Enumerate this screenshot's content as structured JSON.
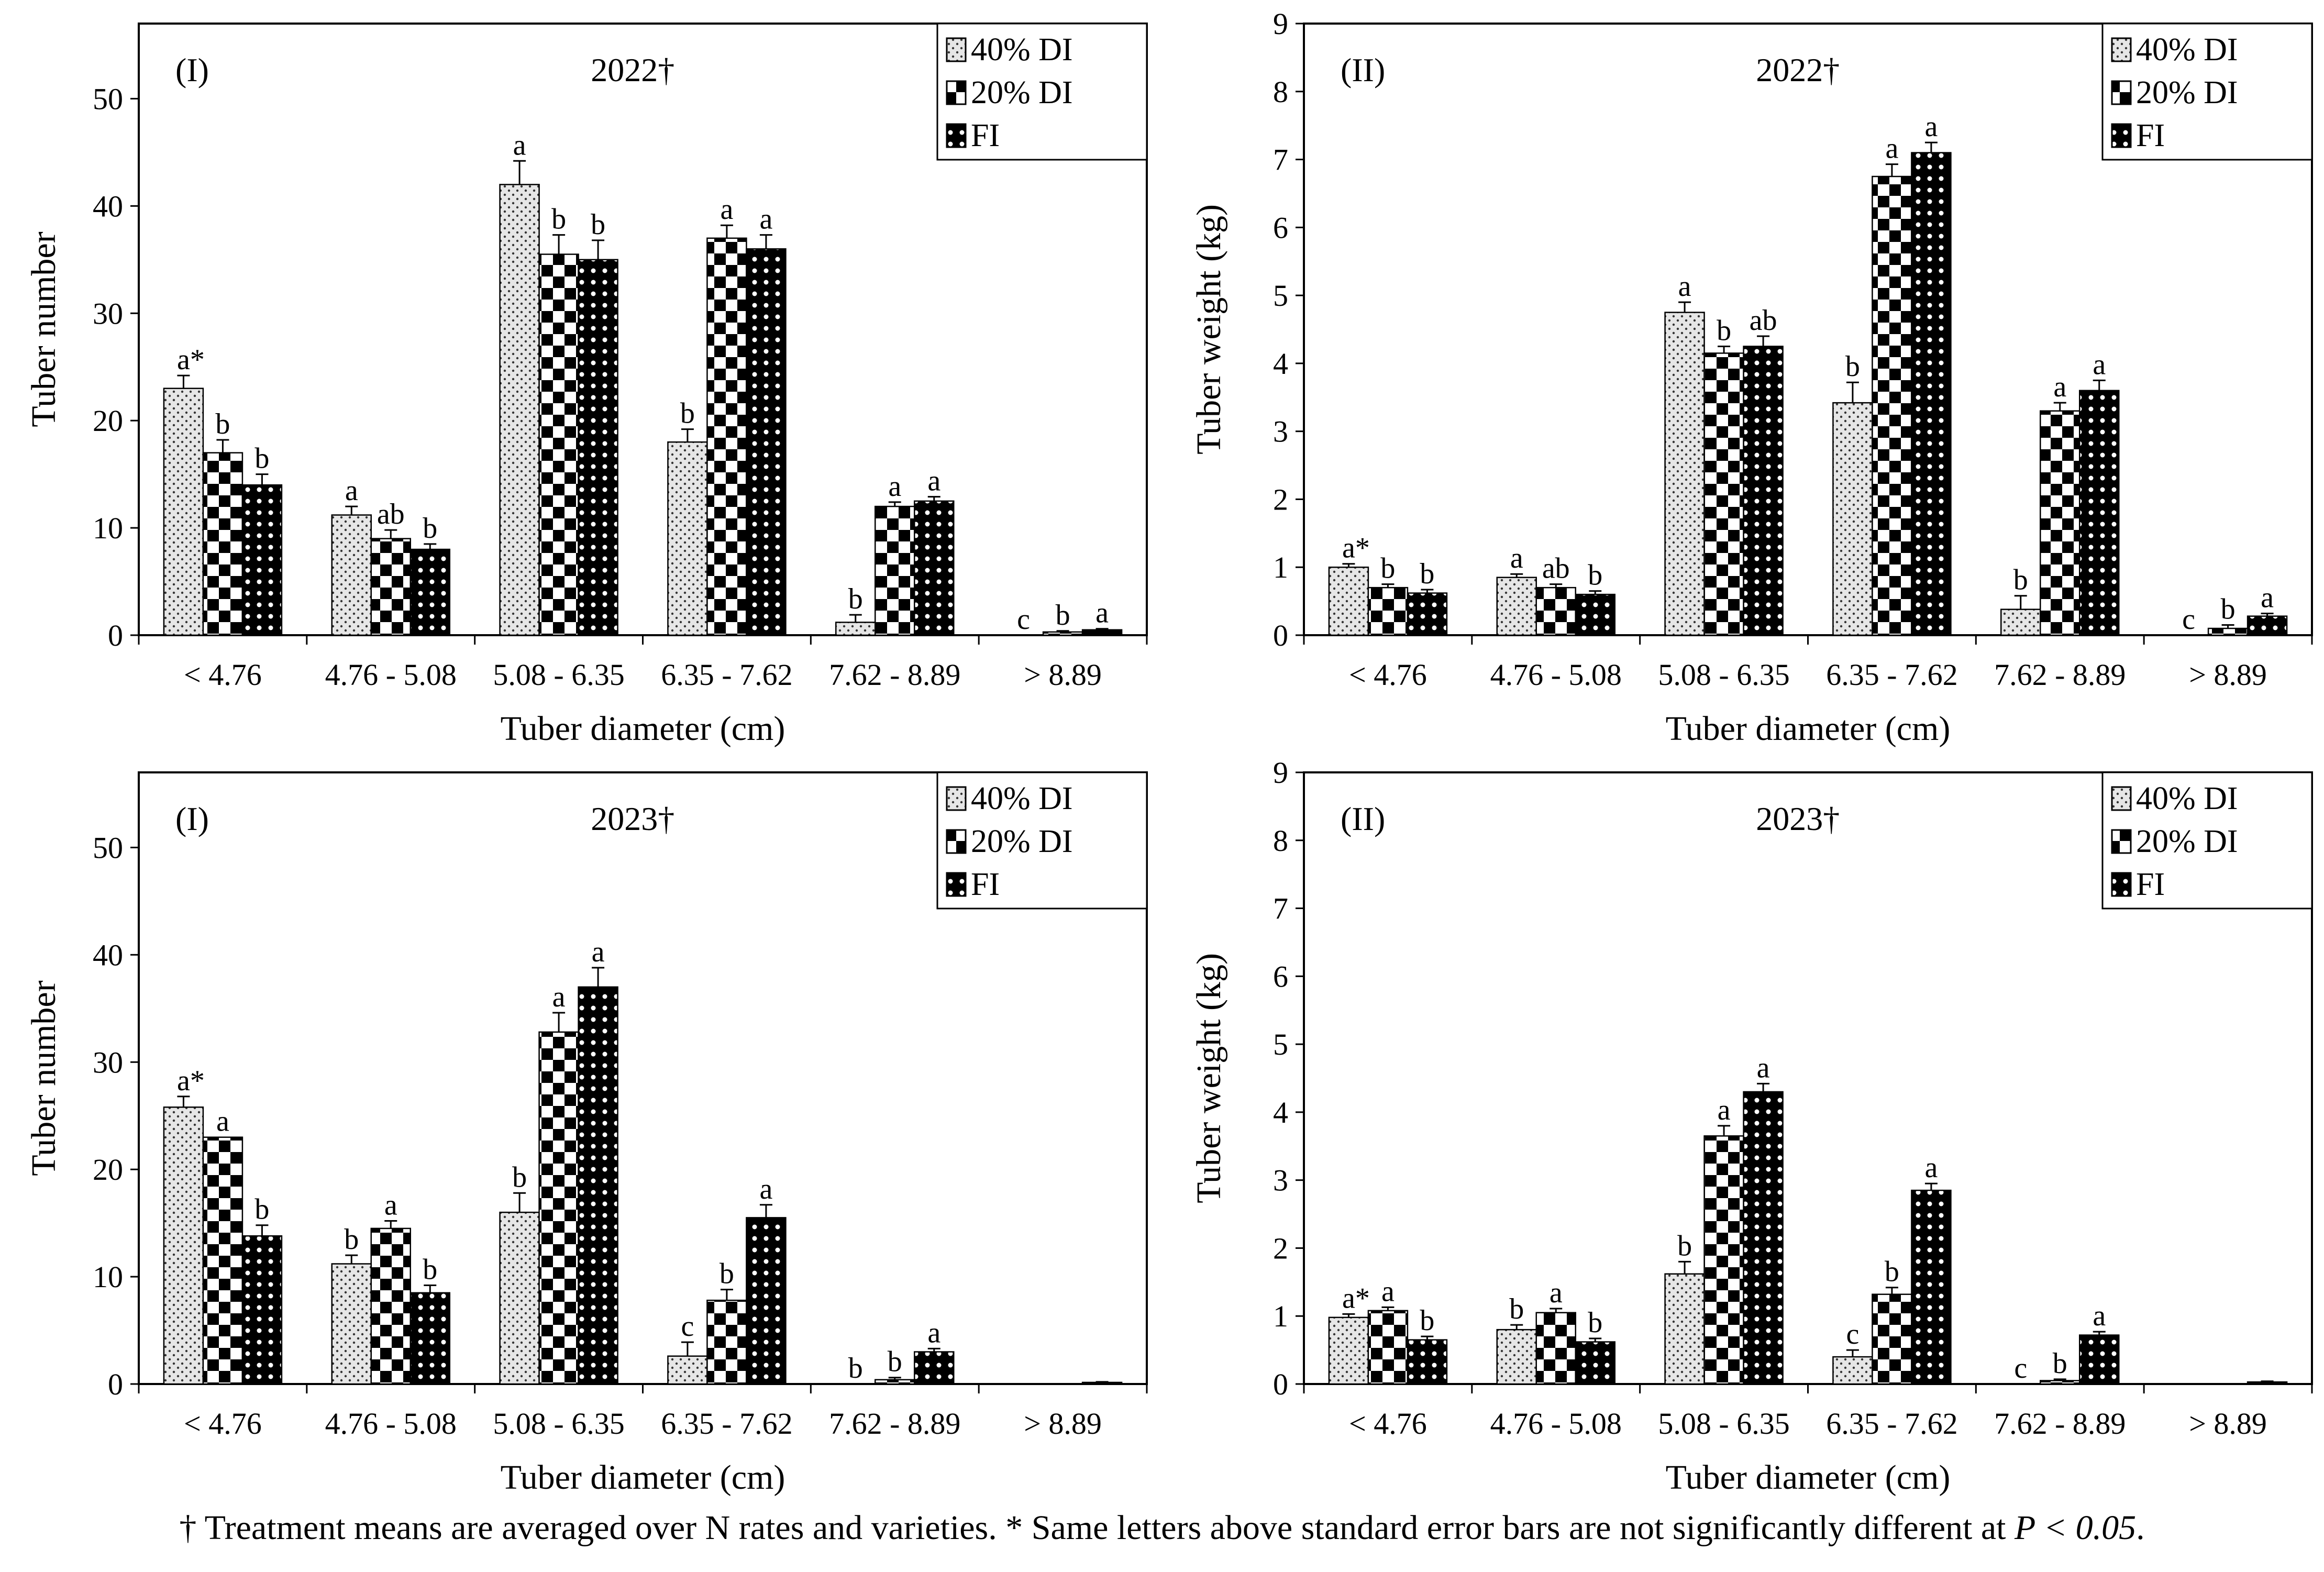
{
  "chart_data": [
    {
      "type": "bar",
      "panel_label": "(I)",
      "title": "2022†",
      "xlabel": "Tuber diameter (cm)",
      "ylabel": "Tuber number",
      "ylim": [
        0,
        57
      ],
      "yticks": [
        0,
        10,
        20,
        30,
        40,
        50
      ],
      "categories": [
        "< 4.76",
        "4.76 - 5.08",
        "5.08 - 6.35",
        "6.35 - 7.62",
        "7.62 - 8.89",
        "> 8.89"
      ],
      "series": [
        {
          "name": "40% DI",
          "values": [
            23.0,
            11.2,
            42.0,
            18.0,
            1.2,
            0.0
          ],
          "errors": [
            1.2,
            0.8,
            2.2,
            1.2,
            0.7,
            0.0
          ],
          "letters": [
            "a*",
            "a",
            "a",
            "b",
            "b",
            "c"
          ]
        },
        {
          "name": "20% DI",
          "values": [
            17.0,
            9.0,
            35.5,
            37.0,
            12.0,
            0.3
          ],
          "errors": [
            1.2,
            0.8,
            1.8,
            1.2,
            0.4,
            0.1
          ],
          "letters": [
            "b",
            "ab",
            "b",
            "a",
            "a",
            "b"
          ]
        },
        {
          "name": "FI",
          "values": [
            14.0,
            8.0,
            35.0,
            36.0,
            12.5,
            0.5
          ],
          "errors": [
            1.0,
            0.5,
            1.8,
            1.3,
            0.4,
            0.1
          ],
          "letters": [
            "b",
            "b",
            "b",
            "a",
            "a",
            "a"
          ]
        }
      ]
    },
    {
      "type": "bar",
      "panel_label": "(II)",
      "title": "2022†",
      "xlabel": "Tuber diameter (cm)",
      "ylabel": "Tuber weight (kg)",
      "ylim": [
        0,
        9
      ],
      "yticks": [
        0,
        1,
        2,
        3,
        4,
        5,
        6,
        7,
        8,
        9
      ],
      "categories": [
        "< 4.76",
        "4.76 - 5.08",
        "5.08 - 6.35",
        "6.35 - 7.62",
        "7.62 - 8.89",
        "> 8.89"
      ],
      "series": [
        {
          "name": "40% DI",
          "values": [
            1.0,
            0.85,
            4.75,
            3.42,
            0.38,
            0.0
          ],
          "errors": [
            0.05,
            0.05,
            0.15,
            0.3,
            0.2,
            0.0
          ],
          "letters": [
            "a*",
            "a",
            "a",
            "b",
            "b",
            "c"
          ]
        },
        {
          "name": "20% DI",
          "values": [
            0.7,
            0.7,
            4.15,
            6.75,
            3.3,
            0.1
          ],
          "errors": [
            0.05,
            0.05,
            0.1,
            0.18,
            0.12,
            0.05
          ],
          "letters": [
            "b",
            "ab",
            "b",
            "a",
            "a",
            "b"
          ]
        },
        {
          "name": "FI",
          "values": [
            0.62,
            0.6,
            4.25,
            7.1,
            3.6,
            0.28
          ],
          "errors": [
            0.05,
            0.05,
            0.15,
            0.15,
            0.15,
            0.04
          ],
          "letters": [
            "b",
            "b",
            "ab",
            "a",
            "a",
            "a"
          ]
        }
      ]
    },
    {
      "type": "bar",
      "panel_label": "(I)",
      "title": "2023†",
      "xlabel": "Tuber diameter (cm)",
      "ylabel": "Tuber number",
      "ylim": [
        0,
        57
      ],
      "yticks": [
        0,
        10,
        20,
        30,
        40,
        50
      ],
      "categories": [
        "< 4.76",
        "4.76 - 5.08",
        "5.08 - 6.35",
        "6.35 - 7.62",
        "7.62 - 8.89",
        "> 8.89"
      ],
      "series": [
        {
          "name": "40% DI",
          "values": [
            25.8,
            11.2,
            16.0,
            2.6,
            0.0,
            0.0
          ],
          "errors": [
            1.0,
            0.8,
            1.8,
            1.3,
            0.0,
            0.0
          ],
          "letters": [
            "a*",
            "b",
            "b",
            "c",
            "b",
            ""
          ]
        },
        {
          "name": "20% DI",
          "values": [
            23.0,
            14.5,
            32.8,
            7.8,
            0.4,
            0.0
          ],
          "errors": [
            0.0,
            0.7,
            1.8,
            1.0,
            0.2,
            0.0
          ],
          "letters": [
            "a",
            "a",
            "a",
            "b",
            "b",
            ""
          ]
        },
        {
          "name": "FI",
          "values": [
            13.8,
            8.5,
            37.0,
            15.5,
            3.0,
            0.15
          ],
          "errors": [
            1.0,
            0.7,
            1.8,
            1.2,
            0.3,
            0.05
          ],
          "letters": [
            "b",
            "b",
            "a",
            "a",
            "a",
            ""
          ]
        }
      ]
    },
    {
      "type": "bar",
      "panel_label": "(II)",
      "title": "2023†",
      "xlabel": "Tuber diameter (cm)",
      "ylabel": "Tuber weight (kg)",
      "ylim": [
        0,
        9
      ],
      "yticks": [
        0,
        1,
        2,
        3,
        4,
        5,
        6,
        7,
        8,
        9
      ],
      "categories": [
        "< 4.76",
        "4.76 - 5.08",
        "5.08 - 6.35",
        "6.35 - 7.62",
        "7.62 - 8.89",
        "> 8.89"
      ],
      "series": [
        {
          "name": "40% DI",
          "values": [
            0.98,
            0.8,
            1.62,
            0.4,
            0.0,
            0.0
          ],
          "errors": [
            0.05,
            0.07,
            0.18,
            0.1,
            0.0,
            0.0
          ],
          "letters": [
            "a*",
            "b",
            "b",
            "c",
            "c",
            ""
          ]
        },
        {
          "name": "20% DI",
          "values": [
            1.08,
            1.05,
            3.65,
            1.32,
            0.05,
            0.0
          ],
          "errors": [
            0.05,
            0.06,
            0.15,
            0.1,
            0.02,
            0.0
          ],
          "letters": [
            "a",
            "a",
            "a",
            "b",
            "b",
            ""
          ]
        },
        {
          "name": "FI",
          "values": [
            0.65,
            0.62,
            4.3,
            2.85,
            0.72,
            0.03
          ],
          "errors": [
            0.05,
            0.05,
            0.12,
            0.1,
            0.05,
            0.01
          ],
          "letters": [
            "b",
            "b",
            "a",
            "a",
            "a",
            ""
          ]
        }
      ]
    }
  ],
  "caption": {
    "text": "† Treatment means are averaged over N rates and varieties. * Same letters above standard error bars are not significantly different at ",
    "pvalue": "P < 0.05",
    "end": "."
  }
}
